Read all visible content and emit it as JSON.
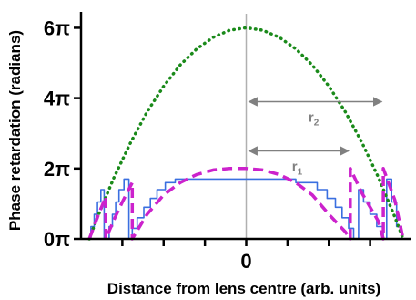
{
  "chart_data": {
    "type": "line",
    "title": "",
    "xlabel": "Distance from lens centre (arb. units)",
    "ylabel": "Phase retardation (radians)",
    "xlim": [
      -1.0,
      1.0
    ],
    "ylim": [
      0,
      6.4
    ],
    "x_tick_labels": [
      {
        "x": 0,
        "label": "0"
      }
    ],
    "y_tick_labels": [
      {
        "y": 0,
        "label": "0π"
      },
      {
        "y": 2,
        "label": "2π"
      },
      {
        "y": 4,
        "label": "4π"
      },
      {
        "y": 6,
        "label": "6π"
      }
    ],
    "y_unit": "π radians",
    "grid": false,
    "legend": "none",
    "series": [
      {
        "style": "dotted",
        "color": "#1a8a1a",
        "description_values": "parabola: y = 6 * (1 - (x/0.95)^2)",
        "x": [
          -0.95,
          -0.9,
          -0.8,
          -0.7,
          -0.6,
          -0.5,
          -0.4,
          -0.3,
          -0.2,
          -0.1,
          0,
          0.1,
          0.2,
          0.3,
          0.4,
          0.5,
          0.6,
          0.7,
          0.8,
          0.9,
          0.95
        ],
        "y": [
          0,
          0.62,
          1.75,
          2.74,
          3.61,
          4.34,
          4.94,
          5.4,
          5.73,
          5.93,
          6.0,
          5.93,
          5.73,
          5.4,
          4.94,
          4.34,
          3.61,
          2.74,
          1.75,
          0.62,
          0
        ]
      },
      {
        "style": "dashed",
        "color": "#cc22cc",
        "x": [
          -0.95,
          -0.9,
          -0.85,
          -0.85,
          -0.8,
          -0.75,
          -0.69,
          -0.69,
          -0.6,
          -0.5,
          -0.4,
          -0.3,
          -0.2,
          -0.1,
          0,
          0.1,
          0.2,
          0.3,
          0.4,
          0.5,
          0.6,
          0.63,
          0.63,
          0.7,
          0.8,
          0.83,
          0.83,
          0.9,
          0.95
        ],
        "y": [
          0,
          0.62,
          1.2,
          0.0,
          0.55,
          1.05,
          1.6,
          0.0,
          0.7,
          1.25,
          1.6,
          1.83,
          1.96,
          2.0,
          2.0,
          1.96,
          1.83,
          1.6,
          1.25,
          0.7,
          0.2,
          0.0,
          2.0,
          1.3,
          0.5,
          0.0,
          2.0,
          1.1,
          0.0
        ]
      },
      {
        "style": "solid-step",
        "color": "#3a6fe0",
        "x": [
          -0.94,
          -0.94,
          -0.92,
          -0.92,
          -0.9,
          -0.9,
          -0.88,
          -0.88,
          -0.86,
          -0.86,
          -0.83,
          -0.83,
          -0.81,
          -0.81,
          -0.79,
          -0.79,
          -0.77,
          -0.77,
          -0.74,
          -0.74,
          -0.71,
          -0.71,
          -0.69,
          -0.69,
          -0.66,
          -0.66,
          -0.62,
          -0.62,
          -0.58,
          -0.58,
          -0.54,
          -0.54,
          -0.49,
          -0.49,
          -0.43,
          -0.43,
          -0.3,
          -0.3,
          0.3,
          0.3,
          0.43,
          0.43,
          0.49,
          0.49,
          0.54,
          0.54,
          0.58,
          0.58,
          0.62,
          0.62,
          0.65,
          0.65,
          0.68,
          0.68,
          0.71,
          0.71,
          0.75,
          0.75,
          0.79,
          0.79,
          0.83,
          0.83,
          0.85,
          0.85,
          0.88,
          0.88,
          0.91,
          0.91,
          0.94,
          0.94
        ],
        "y": [
          0,
          0.35,
          0.35,
          0.7,
          0.7,
          1.05,
          1.05,
          1.4,
          1.4,
          0,
          0,
          0.35,
          0.35,
          0.7,
          0.7,
          1.05,
          1.05,
          1.4,
          1.4,
          1.7,
          1.7,
          0,
          0,
          0.3,
          0.3,
          0.6,
          0.6,
          0.9,
          0.9,
          1.15,
          1.15,
          1.4,
          1.4,
          1.6,
          1.6,
          1.7,
          1.7,
          1.7,
          1.7,
          1.6,
          1.6,
          1.4,
          1.4,
          1.15,
          1.15,
          0.9,
          0.9,
          0.6,
          0.6,
          0.3,
          0.3,
          0,
          0,
          1.4,
          1.4,
          1.05,
          1.05,
          0.7,
          0.7,
          0.35,
          0.35,
          0,
          0,
          1.7,
          1.7,
          1.05,
          1.05,
          0.35,
          0.35,
          0
        ]
      }
    ],
    "annotations": [
      {
        "label": "r",
        "sub": "2",
        "x_start": 0,
        "x_end": 0.82,
        "y": 3.9,
        "color": "#808080"
      },
      {
        "label": "r",
        "sub": "1",
        "x_start": 0,
        "x_end": 0.62,
        "y": 2.5,
        "color": "#808080"
      }
    ],
    "center_line": {
      "x": 0,
      "color": "#b0b0b0"
    }
  }
}
